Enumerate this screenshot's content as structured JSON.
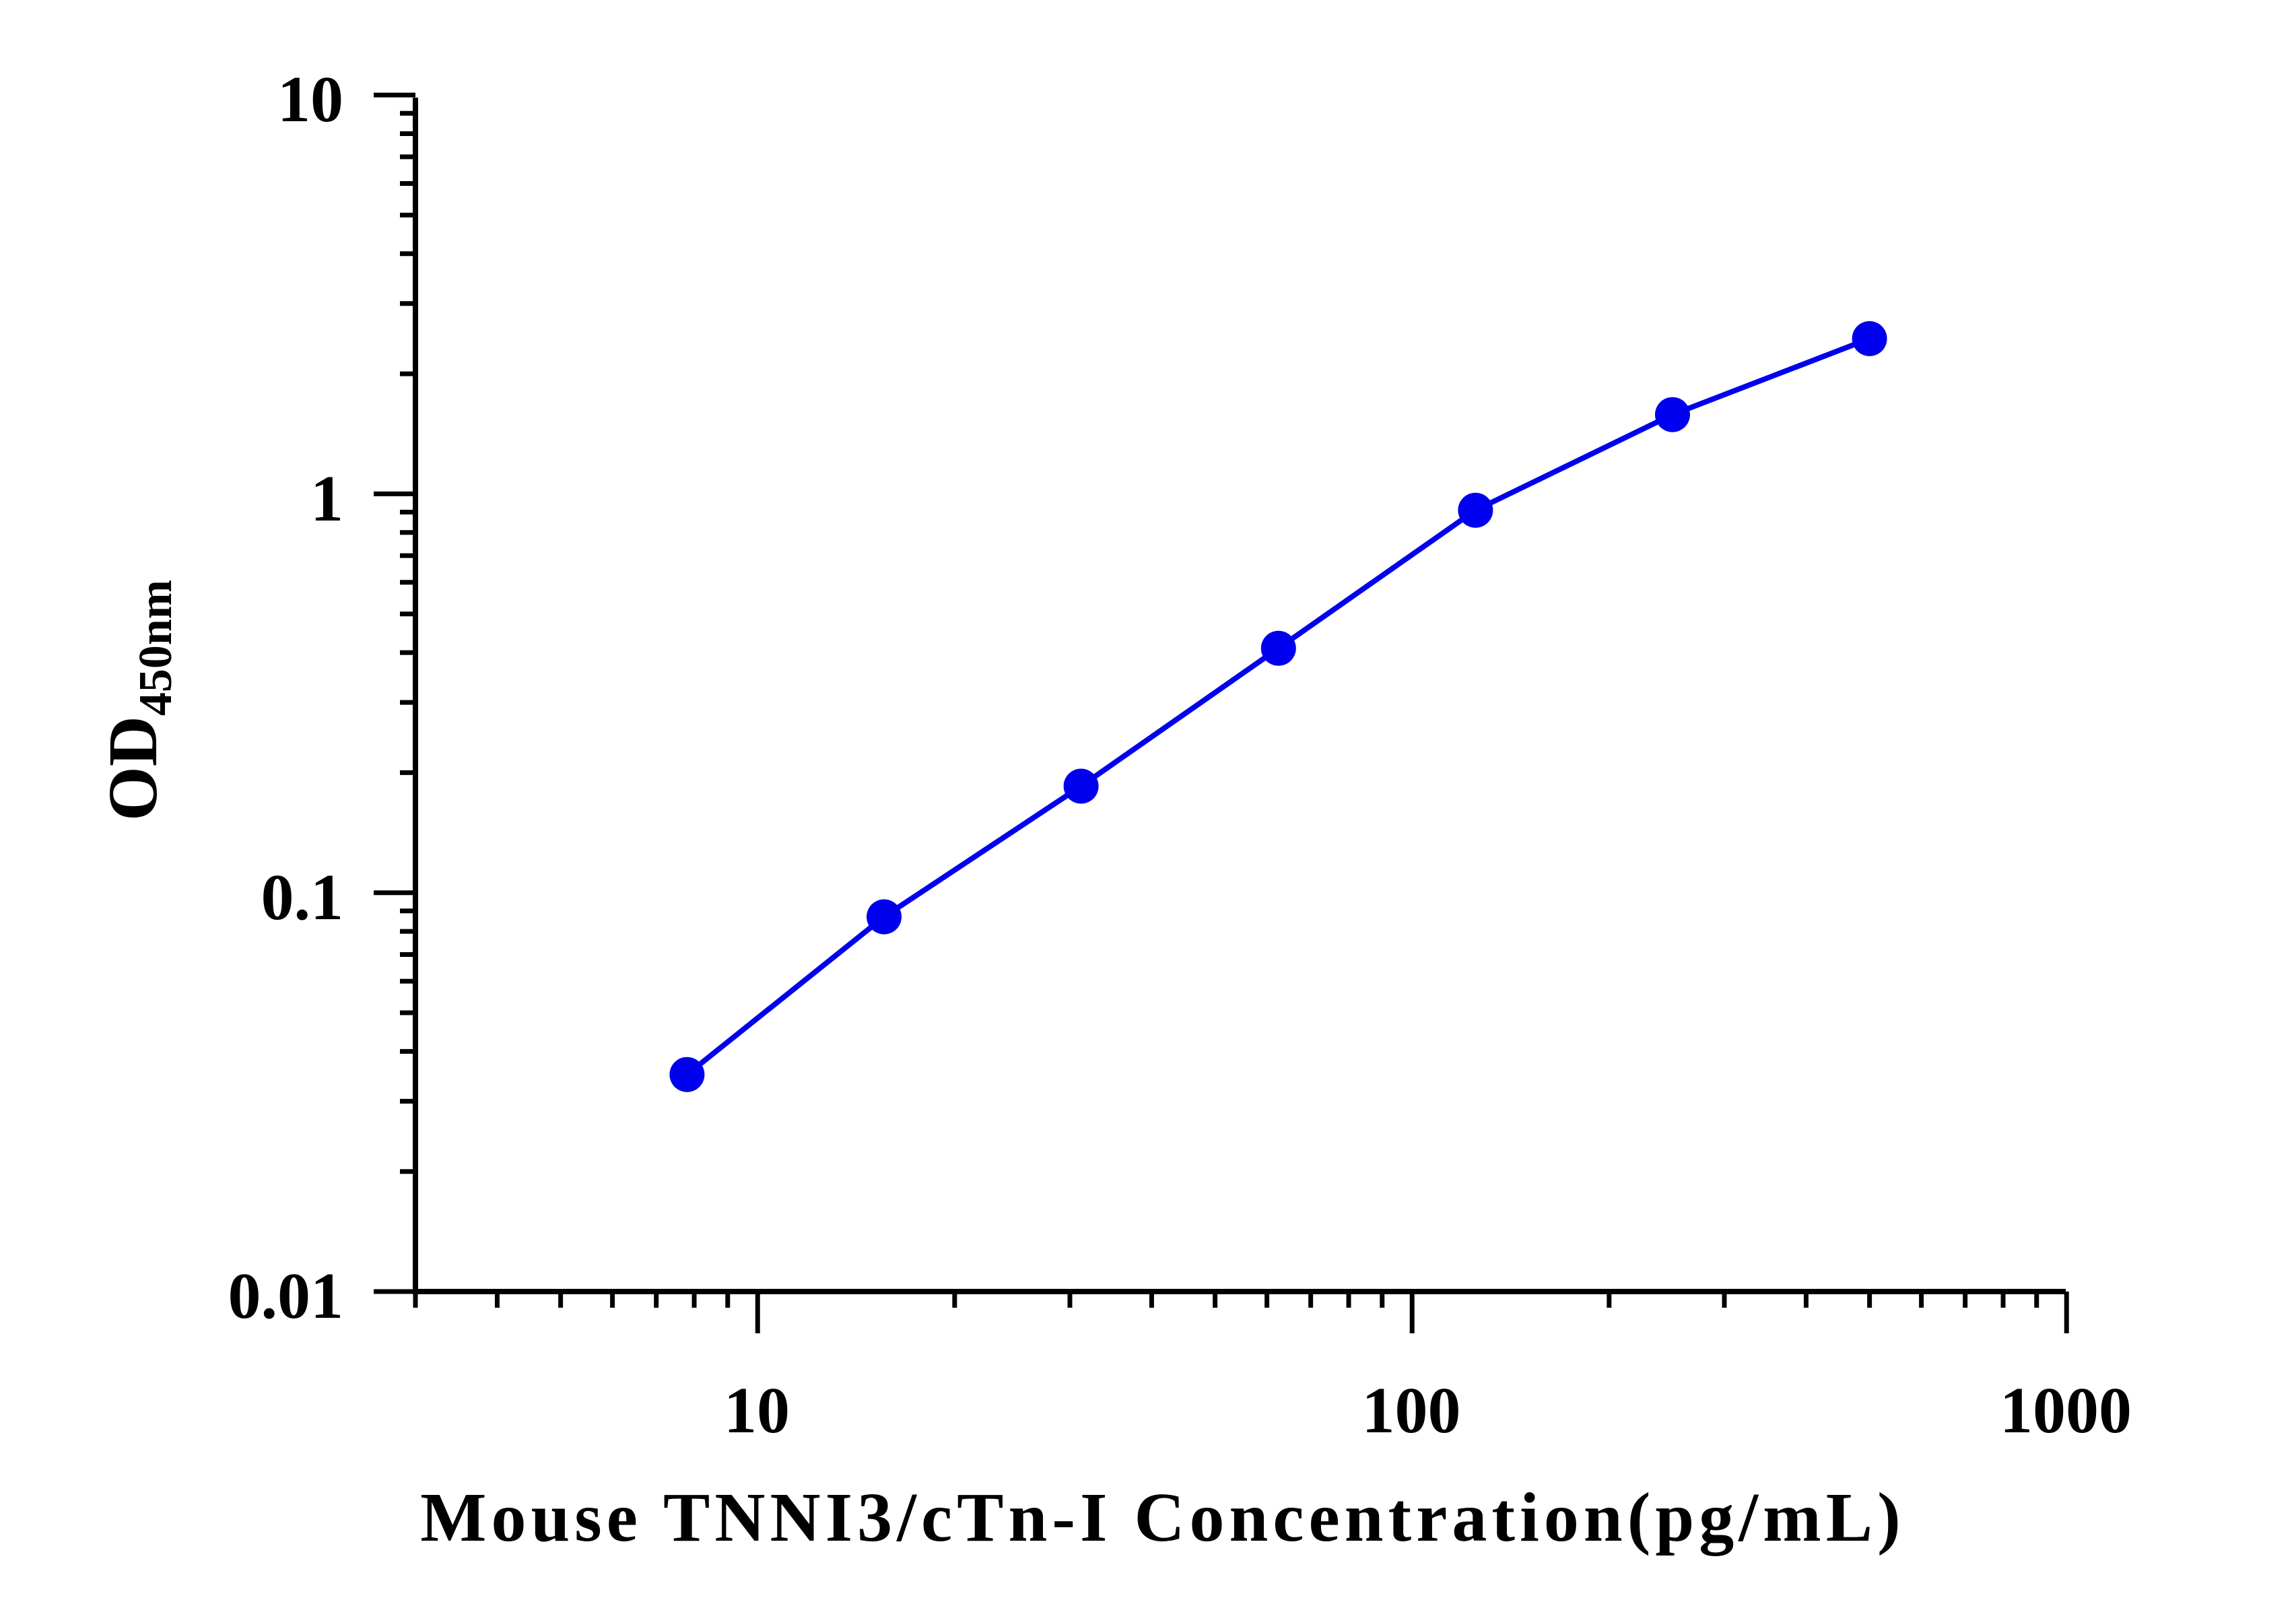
{
  "chart_data": {
    "type": "line",
    "x_scale": "log",
    "y_scale": "log",
    "xlim": [
      3,
      1000
    ],
    "ylim": [
      0.01,
      10
    ],
    "x_tick_labels": [
      "10",
      "100",
      "1000"
    ],
    "y_tick_labels": [
      "10",
      "1",
      "0.1",
      "0.01"
    ],
    "xlabel": "Mouse TNNI3/cTn-I Concentration(pg/mL)",
    "ylabel_main": "OD",
    "ylabel_sub": "450nm",
    "grid": false,
    "series": [
      {
        "color": "#0000ee",
        "x": [
          7.8,
          15.6,
          31.2,
          62.5,
          125,
          250,
          500
        ],
        "y": [
          0.035,
          0.087,
          0.185,
          0.41,
          0.91,
          1.58,
          2.45
        ]
      }
    ]
  }
}
